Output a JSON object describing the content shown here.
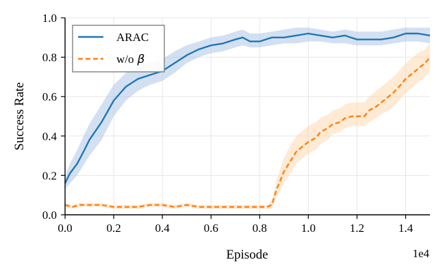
{
  "chart_data": {
    "type": "line",
    "title": "",
    "xlabel": "Episode",
    "ylabel": "Success Rate",
    "x_offset_label": "1e4",
    "xlim": [
      0,
      1.5
    ],
    "ylim": [
      0,
      1.0
    ],
    "x_ticks": [
      0.0,
      0.2,
      0.4,
      0.6,
      0.8,
      1.0,
      1.2,
      1.4
    ],
    "x_tick_labels": [
      "0.0",
      "0.2",
      "0.4",
      "0.6",
      "0.8",
      "1.0",
      "1.2",
      "1.4"
    ],
    "y_ticks": [
      0.0,
      0.2,
      0.4,
      0.6,
      0.8,
      1.0
    ],
    "y_tick_labels": [
      "0.0",
      "0.2",
      "0.4",
      "0.6",
      "0.8",
      "1.0"
    ],
    "grid": true,
    "legend_position": "top-left",
    "series": [
      {
        "name": "ARAC",
        "legend_label": "ARAC",
        "color": "#1f77b4",
        "band_color": "#aec7e8",
        "linestyle": "solid",
        "x": [
          0.0,
          0.02,
          0.05,
          0.08,
          0.1,
          0.15,
          0.2,
          0.25,
          0.3,
          0.35,
          0.4,
          0.45,
          0.5,
          0.55,
          0.6,
          0.65,
          0.7,
          0.73,
          0.76,
          0.8,
          0.85,
          0.9,
          0.95,
          1.0,
          1.05,
          1.1,
          1.15,
          1.2,
          1.25,
          1.3,
          1.35,
          1.4,
          1.45,
          1.5
        ],
        "y": [
          0.16,
          0.21,
          0.26,
          0.33,
          0.38,
          0.47,
          0.58,
          0.65,
          0.69,
          0.71,
          0.73,
          0.77,
          0.81,
          0.84,
          0.86,
          0.87,
          0.89,
          0.9,
          0.88,
          0.88,
          0.9,
          0.9,
          0.91,
          0.92,
          0.91,
          0.9,
          0.91,
          0.89,
          0.89,
          0.89,
          0.9,
          0.92,
          0.92,
          0.91
        ],
        "lower": [
          0.13,
          0.16,
          0.2,
          0.26,
          0.3,
          0.38,
          0.5,
          0.58,
          0.63,
          0.66,
          0.68,
          0.72,
          0.77,
          0.8,
          0.82,
          0.83,
          0.85,
          0.86,
          0.85,
          0.85,
          0.86,
          0.87,
          0.87,
          0.88,
          0.88,
          0.87,
          0.87,
          0.86,
          0.86,
          0.86,
          0.87,
          0.88,
          0.88,
          0.87
        ],
        "upper": [
          0.19,
          0.26,
          0.33,
          0.41,
          0.46,
          0.56,
          0.66,
          0.72,
          0.75,
          0.77,
          0.79,
          0.83,
          0.86,
          0.88,
          0.9,
          0.91,
          0.93,
          0.94,
          0.92,
          0.92,
          0.93,
          0.94,
          0.95,
          0.95,
          0.94,
          0.93,
          0.94,
          0.93,
          0.93,
          0.93,
          0.94,
          0.95,
          0.95,
          0.95
        ]
      },
      {
        "name": "w/o beta",
        "legend_label": "w/o",
        "legend_symbol": "β",
        "color": "#ff7f0e",
        "band_color": "#ffd8b0",
        "linestyle": "dashed",
        "x": [
          0.0,
          0.03,
          0.06,
          0.1,
          0.15,
          0.2,
          0.25,
          0.3,
          0.35,
          0.4,
          0.45,
          0.5,
          0.55,
          0.6,
          0.65,
          0.7,
          0.75,
          0.8,
          0.83,
          0.85,
          0.87,
          0.9,
          0.93,
          0.95,
          0.98,
          1.0,
          1.03,
          1.05,
          1.08,
          1.1,
          1.13,
          1.15,
          1.18,
          1.2,
          1.23,
          1.25,
          1.28,
          1.3,
          1.33,
          1.35,
          1.38,
          1.4,
          1.43,
          1.45,
          1.48,
          1.5
        ],
        "y": [
          0.05,
          0.04,
          0.05,
          0.05,
          0.05,
          0.04,
          0.04,
          0.04,
          0.05,
          0.05,
          0.04,
          0.05,
          0.04,
          0.04,
          0.04,
          0.04,
          0.04,
          0.04,
          0.04,
          0.05,
          0.13,
          0.22,
          0.28,
          0.32,
          0.35,
          0.37,
          0.39,
          0.42,
          0.44,
          0.46,
          0.47,
          0.49,
          0.5,
          0.5,
          0.5,
          0.53,
          0.55,
          0.57,
          0.6,
          0.62,
          0.66,
          0.69,
          0.72,
          0.74,
          0.77,
          0.8
        ],
        "lower": [
          0.04,
          0.03,
          0.04,
          0.04,
          0.04,
          0.03,
          0.03,
          0.03,
          0.04,
          0.04,
          0.03,
          0.04,
          0.03,
          0.03,
          0.03,
          0.03,
          0.03,
          0.03,
          0.03,
          0.03,
          0.09,
          0.16,
          0.22,
          0.26,
          0.29,
          0.31,
          0.33,
          0.36,
          0.38,
          0.41,
          0.42,
          0.44,
          0.45,
          0.45,
          0.45,
          0.47,
          0.49,
          0.51,
          0.53,
          0.55,
          0.59,
          0.62,
          0.65,
          0.67,
          0.7,
          0.73
        ],
        "upper": [
          0.06,
          0.05,
          0.06,
          0.06,
          0.06,
          0.05,
          0.05,
          0.05,
          0.06,
          0.06,
          0.05,
          0.06,
          0.05,
          0.05,
          0.05,
          0.05,
          0.05,
          0.05,
          0.05,
          0.07,
          0.18,
          0.29,
          0.36,
          0.4,
          0.43,
          0.45,
          0.47,
          0.49,
          0.51,
          0.53,
          0.54,
          0.56,
          0.57,
          0.57,
          0.57,
          0.6,
          0.63,
          0.65,
          0.68,
          0.7,
          0.74,
          0.77,
          0.8,
          0.82,
          0.84,
          0.87
        ]
      }
    ]
  }
}
